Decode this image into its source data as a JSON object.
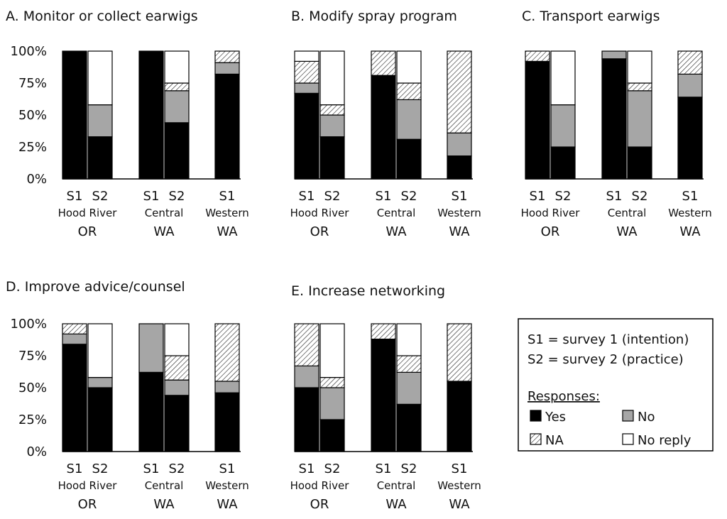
{
  "chart_data": [
    {
      "type": "bar",
      "stacked": true,
      "title": "A.  Monitor or collect earwigs",
      "yticks": [
        "100%",
        "75%",
        "50%",
        "25%",
        "0%"
      ],
      "ylim": [
        0,
        100
      ],
      "groups": [
        {
          "site": "Hood River",
          "state": "OR",
          "bars": [
            {
              "label": "S1",
              "values": {
                "Yes": 100,
                "No": 0,
                "NA": 0,
                "No reply": 0
              }
            },
            {
              "label": "S2",
              "values": {
                "Yes": 33,
                "No": 25,
                "NA": 0,
                "No reply": 42
              }
            }
          ]
        },
        {
          "site": "Central",
          "state": "WA",
          "bars": [
            {
              "label": "S1",
              "values": {
                "Yes": 100,
                "No": 0,
                "NA": 0,
                "No reply": 0
              }
            },
            {
              "label": "S2",
              "values": {
                "Yes": 44,
                "No": 25,
                "NA": 6,
                "No reply": 25
              }
            }
          ]
        },
        {
          "site": "Western",
          "state": "WA",
          "bars": [
            {
              "label": "S1",
              "values": {
                "Yes": 82,
                "No": 9,
                "NA": 9,
                "No reply": 0
              }
            }
          ]
        }
      ]
    },
    {
      "type": "bar",
      "stacked": true,
      "title": "B. Modify spray program",
      "yticks": [],
      "ylim": [
        0,
        100
      ],
      "groups": [
        {
          "site": "Hood River",
          "state": "OR",
          "bars": [
            {
              "label": "S1",
              "values": {
                "Yes": 67,
                "No": 8,
                "NA": 17,
                "No reply": 8
              }
            },
            {
              "label": "S2",
              "values": {
                "Yes": 33,
                "No": 17,
                "NA": 8,
                "No reply": 42
              }
            }
          ]
        },
        {
          "site": "Central",
          "state": "WA",
          "bars": [
            {
              "label": "S1",
              "values": {
                "Yes": 81,
                "No": 0,
                "NA": 19,
                "No reply": 0
              }
            },
            {
              "label": "S2",
              "values": {
                "Yes": 31,
                "No": 31,
                "NA": 13,
                "No reply": 25
              }
            }
          ]
        },
        {
          "site": "Western",
          "state": "WA",
          "bars": [
            {
              "label": "S1",
              "values": {
                "Yes": 18,
                "No": 18,
                "NA": 64,
                "No reply": 0
              }
            }
          ]
        }
      ]
    },
    {
      "type": "bar",
      "stacked": true,
      "title": "C. Transport earwigs",
      "yticks": [],
      "ylim": [
        0,
        100
      ],
      "groups": [
        {
          "site": "Hood River",
          "state": "OR",
          "bars": [
            {
              "label": "S1",
              "values": {
                "Yes": 92,
                "No": 0,
                "NA": 8,
                "No reply": 0
              }
            },
            {
              "label": "S2",
              "values": {
                "Yes": 25,
                "No": 33,
                "NA": 0,
                "No reply": 42
              }
            }
          ]
        },
        {
          "site": "Central",
          "state": "WA",
          "bars": [
            {
              "label": "S1",
              "values": {
                "Yes": 94,
                "No": 6,
                "NA": 0,
                "No reply": 0
              }
            },
            {
              "label": "S2",
              "values": {
                "Yes": 25,
                "No": 44,
                "NA": 6,
                "No reply": 25
              }
            }
          ]
        },
        {
          "site": "Western",
          "state": "WA",
          "bars": [
            {
              "label": "S1",
              "values": {
                "Yes": 64,
                "No": 18,
                "NA": 18,
                "No reply": 0
              }
            }
          ]
        }
      ]
    },
    {
      "type": "bar",
      "stacked": true,
      "title": "D. Improve advice/counsel",
      "yticks": [
        "100%",
        "75%",
        "50%",
        "25%",
        "0%"
      ],
      "ylim": [
        0,
        100
      ],
      "groups": [
        {
          "site": "Hood River",
          "state": "OR",
          "bars": [
            {
              "label": "S1",
              "values": {
                "Yes": 84,
                "No": 8,
                "NA": 8,
                "No reply": 0
              }
            },
            {
              "label": "S2",
              "values": {
                "Yes": 50,
                "No": 8,
                "NA": 0,
                "No reply": 42
              }
            }
          ]
        },
        {
          "site": "Central",
          "state": "WA",
          "bars": [
            {
              "label": "S1",
              "values": {
                "Yes": 62,
                "No": 38,
                "NA": 0,
                "No reply": 0
              }
            },
            {
              "label": "S2",
              "values": {
                "Yes": 44,
                "No": 12,
                "NA": 19,
                "No reply": 25
              }
            }
          ]
        },
        {
          "site": "Western",
          "state": "WA",
          "bars": [
            {
              "label": "S1",
              "values": {
                "Yes": 46,
                "No": 9,
                "NA": 45,
                "No reply": 0
              }
            }
          ]
        }
      ]
    },
    {
      "type": "bar",
      "stacked": true,
      "title": "E. Increase networking",
      "yticks": [],
      "ylim": [
        0,
        100
      ],
      "groups": [
        {
          "site": "Hood River",
          "state": "OR",
          "bars": [
            {
              "label": "S1",
              "values": {
                "Yes": 50,
                "No": 17,
                "NA": 33,
                "No reply": 0
              }
            },
            {
              "label": "S2",
              "values": {
                "Yes": 25,
                "No": 25,
                "NA": 8,
                "No reply": 42
              }
            }
          ]
        },
        {
          "site": "Central",
          "state": "WA",
          "bars": [
            {
              "label": "S1",
              "values": {
                "Yes": 88,
                "No": 0,
                "NA": 12,
                "No reply": 0
              }
            },
            {
              "label": "S2",
              "values": {
                "Yes": 37,
                "No": 25,
                "NA": 13,
                "No reply": 25
              }
            }
          ]
        },
        {
          "site": "Western",
          "state": "WA",
          "bars": [
            {
              "label": "S1",
              "values": {
                "Yes": 55,
                "No": 0,
                "NA": 45,
                "No reply": 0
              }
            }
          ]
        }
      ]
    }
  ],
  "legend": {
    "definitions": [
      "S1 = survey 1 (intention)",
      "S2 = survey 2 (practice)"
    ],
    "heading": "Responses:",
    "items": [
      {
        "name": "Yes",
        "swatch": "solid",
        "color": "#000000"
      },
      {
        "name": "No",
        "swatch": "solid",
        "color": "#a6a6a6"
      },
      {
        "name": "NA",
        "swatch": "hatch",
        "color": "#ffffff"
      },
      {
        "name": "No reply",
        "swatch": "solid",
        "color": "#ffffff"
      }
    ]
  },
  "colors": {
    "Yes": "#000000",
    "No": "#a6a6a6",
    "NA": "hatch",
    "No reply": "#ffffff"
  }
}
